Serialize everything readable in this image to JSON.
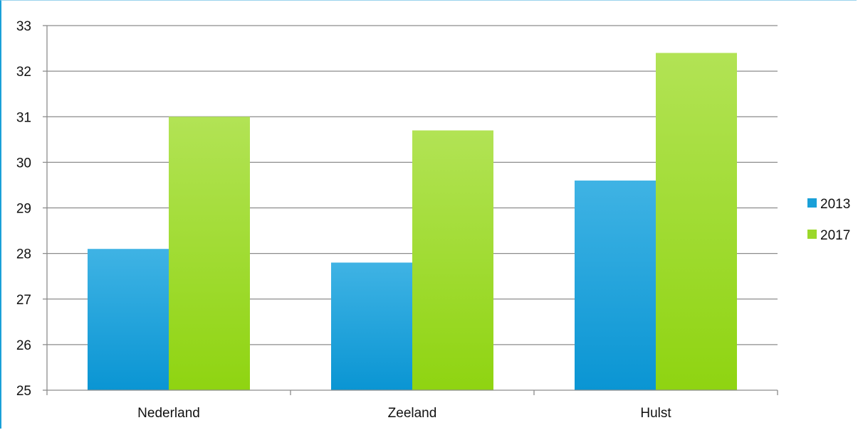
{
  "chart_data": {
    "type": "bar",
    "categories": [
      "Nederland",
      "Zeeland",
      "Hulst"
    ],
    "series": [
      {
        "name": "2013",
        "values": [
          28.1,
          27.8,
          29.6
        ],
        "color": "#1aa0d8"
      },
      {
        "name": "2017",
        "values": [
          31.0,
          30.7,
          32.4
        ],
        "color": "#9bd82a"
      }
    ],
    "ylim": [
      25,
      33
    ],
    "yticks": [
      "25",
      "26",
      "27",
      "28",
      "29",
      "30",
      "31",
      "32",
      "33"
    ],
    "grid": true,
    "legend_position": "right",
    "title": "",
    "xlabel": "",
    "ylabel": ""
  }
}
